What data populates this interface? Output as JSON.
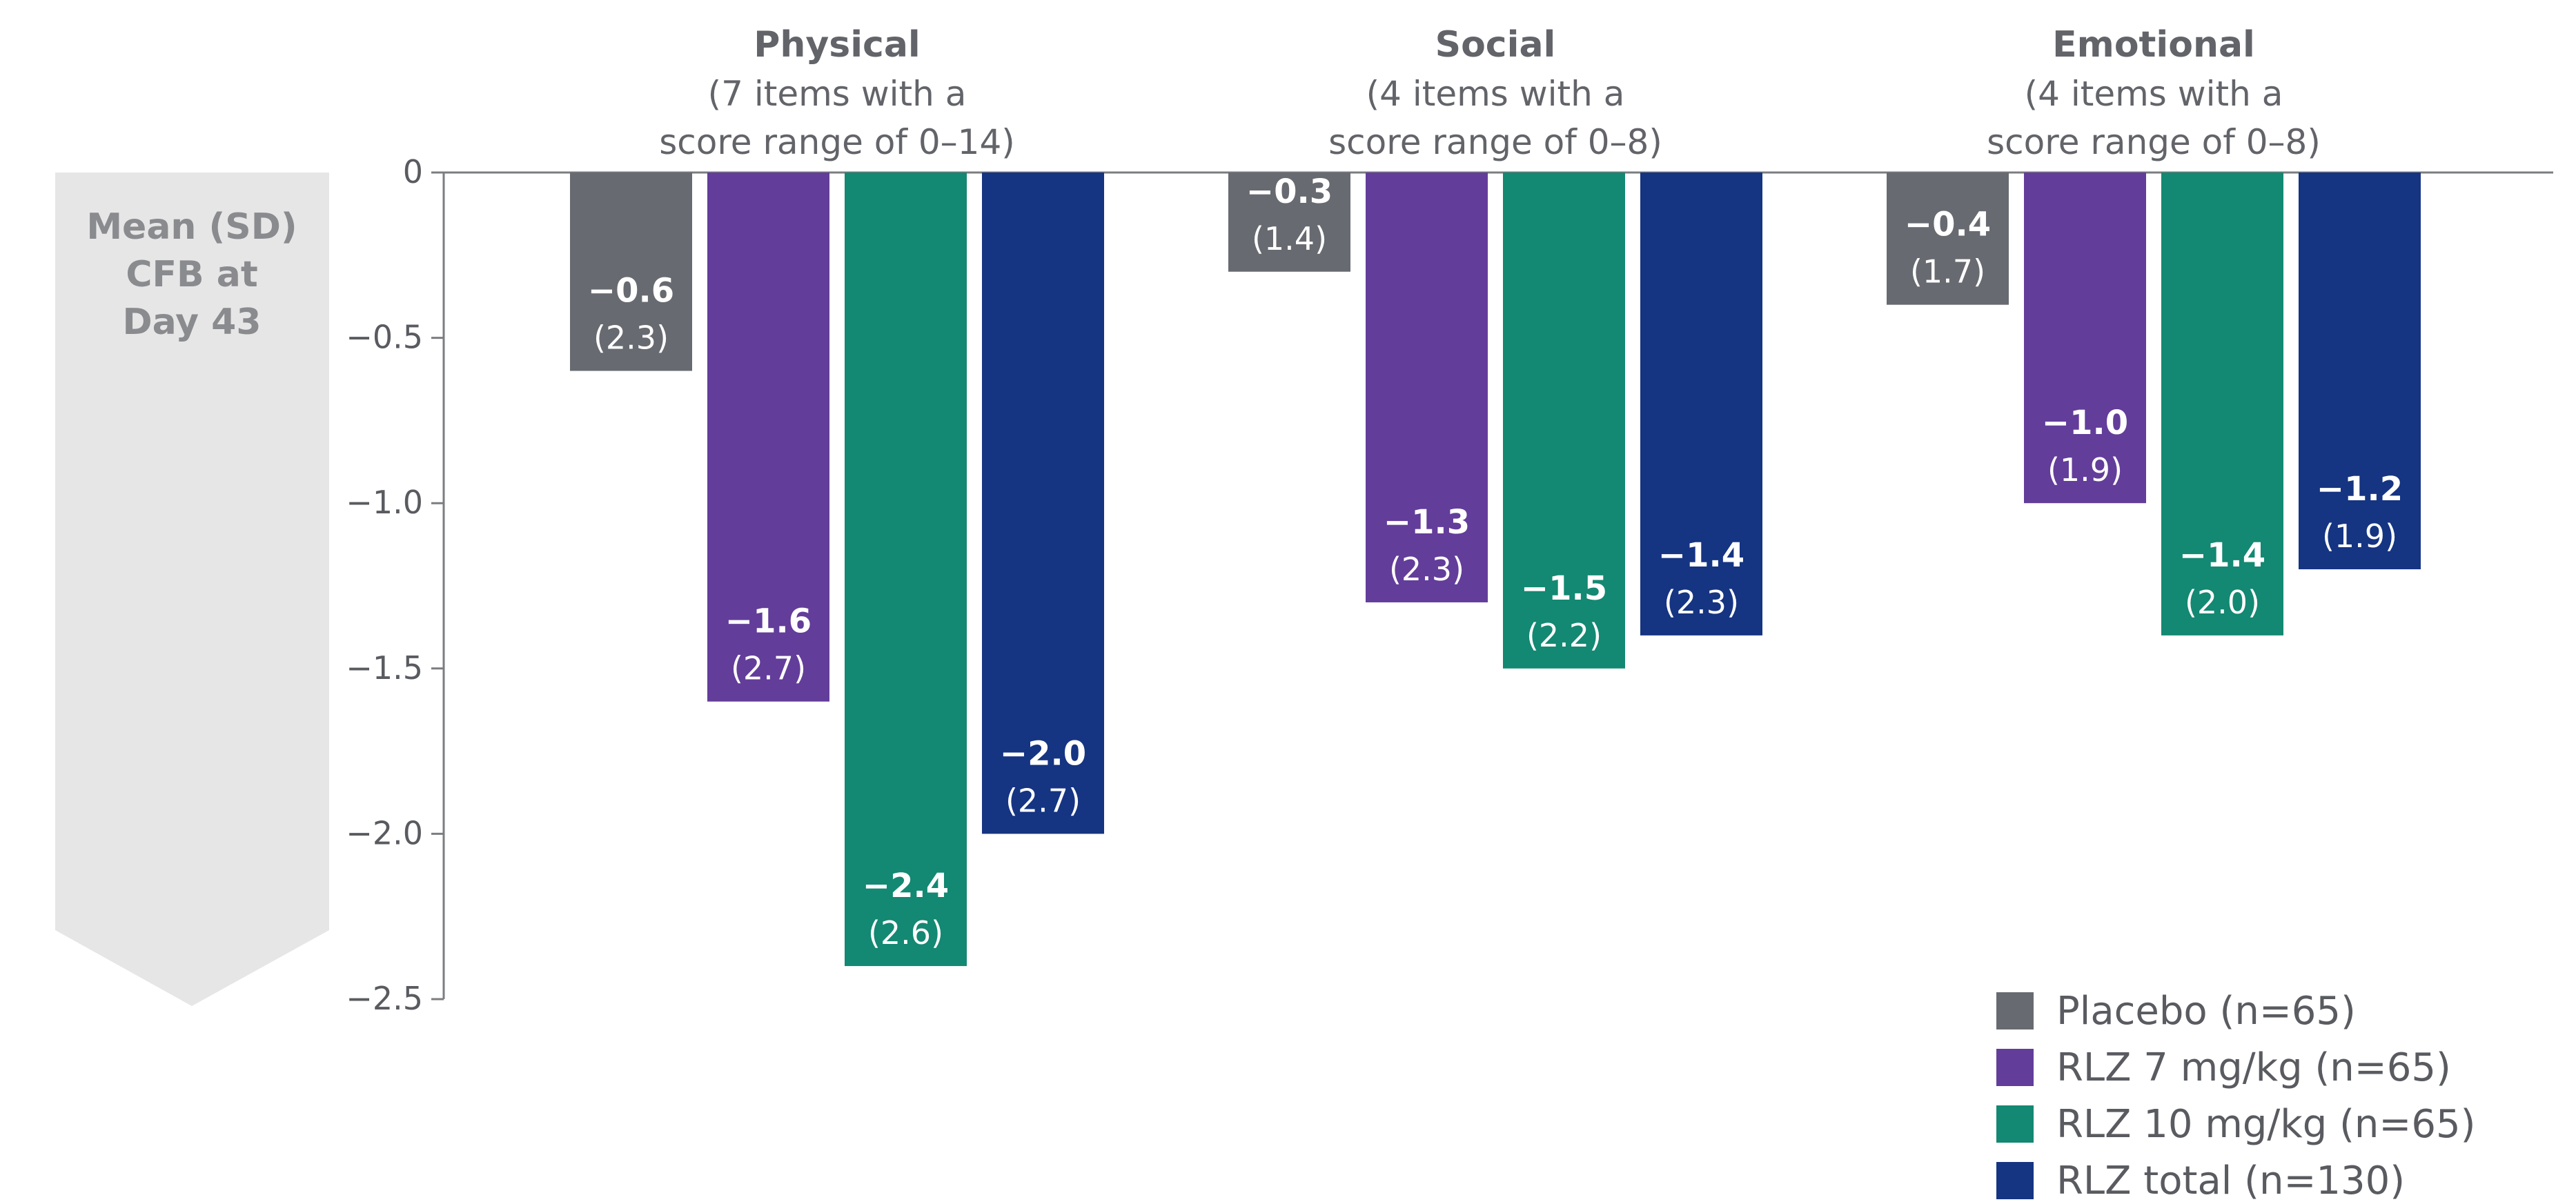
{
  "chart_data": {
    "type": "bar",
    "ylabel_lines": [
      "Mean (SD)",
      "CFB at",
      "Day 43"
    ],
    "ylim": [
      -2.5,
      0
    ],
    "yticks": [
      "0",
      "−0.5",
      "−1.0",
      "−1.5",
      "−2.0",
      "−2.5"
    ],
    "ytick_values": [
      0,
      -0.5,
      -1.0,
      -1.5,
      -2.0,
      -2.5
    ],
    "grid": false,
    "legend_position": "bottom-right",
    "categories": [
      {
        "title": "Physical",
        "subtitle": [
          "(7 items with a",
          "score range of 0–14)"
        ]
      },
      {
        "title": "Social",
        "subtitle": [
          "(4 items with a",
          "score range of 0–8)"
        ]
      },
      {
        "title": "Emotional",
        "subtitle": [
          "(4 items with a",
          "score range of 0–8)"
        ]
      }
    ],
    "series": [
      {
        "name": "Placebo (n=65)",
        "color": "#676a70",
        "values": [
          -0.6,
          -0.3,
          -0.4
        ],
        "labels": [
          "−0.6",
          "−0.3",
          "−0.4"
        ],
        "sd": [
          "(2.3)",
          "(1.4)",
          "(1.7)"
        ]
      },
      {
        "name": "RLZ 7 mg/kg (n=65)",
        "color": "#633d9a",
        "values": [
          -1.6,
          -1.3,
          -1.0
        ],
        "labels": [
          "−1.6",
          "−1.3",
          "−1.0"
        ],
        "sd": [
          "(2.7)",
          "(2.3)",
          "(1.9)"
        ]
      },
      {
        "name": "RLZ 10 mg/kg (n=65)",
        "color": "#138872",
        "values": [
          -2.4,
          -1.5,
          -1.4
        ],
        "labels": [
          "−2.4",
          "−1.5",
          "−1.4"
        ],
        "sd": [
          "(2.6)",
          "(2.2)",
          "(2.0)"
        ]
      },
      {
        "name": "RLZ total (n=130)",
        "color": "#153482",
        "values": [
          -2.0,
          -1.4,
          -1.2
        ],
        "labels": [
          "−2.0",
          "−1.4",
          "−1.2"
        ],
        "sd": [
          "(2.7)",
          "(2.3)",
          "(1.9)"
        ]
      }
    ]
  }
}
